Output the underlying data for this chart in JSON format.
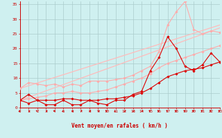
{
  "bg_color": "#cff0f0",
  "grid_color": "#aacccc",
  "xlabel": "Vent moyen/en rafales ( km/h )",
  "xlim": [
    0,
    23
  ],
  "ylim": [
    0,
    36
  ],
  "xticks": [
    0,
    1,
    2,
    3,
    4,
    5,
    6,
    7,
    8,
    9,
    10,
    11,
    12,
    13,
    14,
    15,
    16,
    17,
    18,
    19,
    20,
    21,
    22,
    23
  ],
  "yticks": [
    0,
    5,
    10,
    15,
    20,
    25,
    30,
    35
  ],
  "series": [
    {
      "x": [
        0,
        23
      ],
      "y": [
        2.5,
        27.0
      ],
      "color": "#ffbbbb",
      "lw": 0.9,
      "marker": null
    },
    {
      "x": [
        0,
        23
      ],
      "y": [
        6.5,
        28.0
      ],
      "color": "#ffbbbb",
      "lw": 0.9,
      "marker": null
    },
    {
      "x": [
        0,
        1,
        2,
        3,
        4,
        5,
        6,
        7,
        8,
        9,
        10,
        11,
        12,
        13,
        14,
        15,
        16,
        17,
        18,
        19,
        20,
        21,
        22,
        23
      ],
      "y": [
        2.5,
        3.0,
        3.5,
        4.0,
        5.0,
        5.0,
        5.5,
        5.0,
        5.0,
        5.5,
        6.0,
        7.0,
        8.0,
        9.0,
        10.0,
        11.5,
        13.5,
        15.0,
        16.0,
        17.0,
        18.0,
        19.0,
        20.0,
        21.0
      ],
      "color": "#ffaaaa",
      "lw": 0.8,
      "marker": "D",
      "ms": 1.8
    },
    {
      "x": [
        0,
        1,
        2,
        3,
        4,
        5,
        6,
        7,
        8,
        9,
        10,
        11,
        12,
        13,
        14,
        15,
        16,
        17,
        18,
        19,
        20,
        21,
        22,
        23
      ],
      "y": [
        6.5,
        8.5,
        8.0,
        7.5,
        8.0,
        7.0,
        8.0,
        7.5,
        9.0,
        9.0,
        9.0,
        9.5,
        10.0,
        11.0,
        12.5,
        14.0,
        19.0,
        28.0,
        32.5,
        36.0,
        26.5,
        25.0,
        26.0,
        25.5
      ],
      "color": "#ffaaaa",
      "lw": 0.8,
      "marker": "D",
      "ms": 1.8
    },
    {
      "x": [
        0,
        1,
        2,
        3,
        4,
        5,
        6,
        7,
        8,
        9,
        10,
        11,
        12,
        13,
        14,
        15,
        16,
        17,
        18,
        19,
        20,
        21,
        22,
        23
      ],
      "y": [
        2.5,
        4.5,
        2.5,
        1.0,
        1.0,
        2.5,
        1.0,
        1.0,
        2.5,
        1.5,
        1.0,
        2.5,
        2.5,
        4.5,
        5.5,
        12.5,
        17.0,
        24.0,
        20.0,
        14.0,
        12.5,
        14.5,
        18.5,
        15.5
      ],
      "color": "#dd0000",
      "lw": 0.8,
      "marker": "D",
      "ms": 1.8
    },
    {
      "x": [
        0,
        1,
        2,
        3,
        4,
        5,
        6,
        7,
        8,
        9,
        10,
        11,
        12,
        13,
        14,
        15,
        16,
        17,
        18,
        19,
        20,
        21,
        22,
        23
      ],
      "y": [
        2.5,
        1.5,
        2.5,
        2.5,
        2.5,
        3.0,
        3.0,
        2.5,
        2.5,
        2.5,
        3.0,
        3.0,
        3.5,
        4.0,
        5.0,
        6.5,
        8.5,
        10.5,
        11.5,
        12.5,
        13.0,
        13.5,
        14.5,
        15.5
      ],
      "color": "#dd0000",
      "lw": 0.8,
      "marker": "D",
      "ms": 1.8
    }
  ],
  "label_color": "#cc0000",
  "tick_color": "#cc0000",
  "axis_color": "#cc0000",
  "arrow_angles": [
    225,
    270,
    315,
    270,
    315,
    225,
    270,
    270,
    270,
    270,
    315,
    225,
    270,
    270,
    270,
    315,
    315,
    315,
    315,
    315,
    315,
    315,
    315,
    315
  ]
}
